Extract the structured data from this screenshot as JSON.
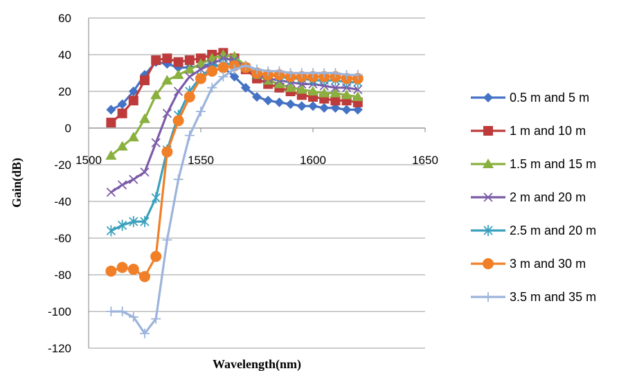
{
  "chart_data": {
    "type": "line",
    "xlabel": "Wavelength(nm)",
    "ylabel": "Gain(dB)",
    "xlim": [
      1500,
      1650
    ],
    "ylim": [
      -120,
      60
    ],
    "x_ticks": [
      "1500",
      "1550",
      "1600",
      "1650"
    ],
    "y_ticks": [
      "60",
      "40",
      "20",
      "0",
      "-20",
      "-40",
      "-60",
      "-80",
      "-100",
      "-120"
    ],
    "grid": "horizontal",
    "legend": "right",
    "x": [
      1510,
      1515,
      1520,
      1525,
      1530,
      1535,
      1540,
      1545,
      1550,
      1555,
      1560,
      1565,
      1570,
      1575,
      1580,
      1585,
      1590,
      1595,
      1600,
      1605,
      1610,
      1615,
      1620
    ],
    "series": [
      {
        "name": "0.5 m and 5 m",
        "color": "#4472C4",
        "marker": "diamond",
        "values": [
          10,
          13,
          20,
          29,
          36,
          35,
          33,
          33,
          34,
          35,
          33,
          28,
          22,
          17,
          15,
          14,
          13,
          12,
          12,
          11,
          11,
          10,
          10
        ]
      },
      {
        "name": "1 m and 10 m",
        "color": "#BE3B3B",
        "marker": "square",
        "values": [
          3,
          8,
          15,
          26,
          37,
          38,
          36,
          37,
          38,
          40,
          41,
          38,
          32,
          27,
          24,
          22,
          20,
          18,
          17,
          16,
          15,
          15,
          14
        ]
      },
      {
        "name": "1.5 m and 15 m",
        "color": "#8AB040",
        "marker": "triangle",
        "values": [
          -15,
          -10,
          -5,
          5,
          18,
          26,
          29,
          32,
          35,
          38,
          40,
          39,
          34,
          29,
          26,
          24,
          22,
          21,
          20,
          19,
          19,
          18,
          17
        ]
      },
      {
        "name": "2 m and 20 m",
        "color": "#7B5BA8",
        "marker": "x",
        "values": [
          -35,
          -31,
          -28,
          -24,
          -8,
          8,
          20,
          28,
          32,
          35,
          38,
          37,
          33,
          29,
          27,
          26,
          25,
          24,
          24,
          23,
          22,
          22,
          21
        ]
      },
      {
        "name": "2.5 m and 20 m",
        "color": "#3AA0BD",
        "marker": "star",
        "values": [
          -56,
          -53,
          -51,
          -51,
          -38,
          -12,
          7,
          20,
          28,
          33,
          35,
          35,
          33,
          30,
          29,
          28,
          27,
          27,
          26,
          26,
          26,
          25,
          25
        ]
      },
      {
        "name": "3 m and 30 m",
        "color": "#F07F27",
        "marker": "circle",
        "values": [
          -78,
          -76,
          -77,
          -81,
          -70,
          -13,
          4,
          17,
          27,
          31,
          33,
          34,
          33,
          30,
          29,
          29,
          28,
          28,
          28,
          28,
          28,
          27,
          27
        ]
      },
      {
        "name": "3.5 m and 35 m",
        "color": "#9CB3DB",
        "marker": "plus",
        "values": [
          -100,
          -100,
          -103,
          -112,
          -104,
          -61,
          -28,
          -4,
          9,
          22,
          28,
          32,
          34,
          32,
          31,
          31,
          30,
          30,
          30,
          30,
          30,
          29,
          29
        ]
      }
    ]
  }
}
